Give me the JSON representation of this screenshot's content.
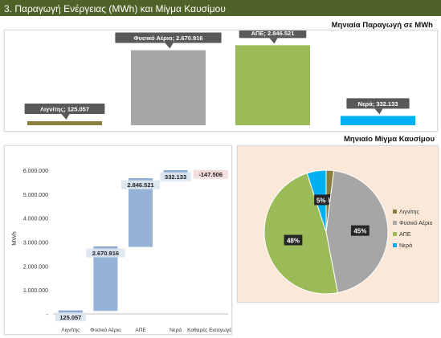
{
  "header": {
    "title": "3. Παραγωγή Ενέργειας (MWh) και Μίγμα Καυσίμου"
  },
  "colors": {
    "header_bg": "#4f6228",
    "lignite": "#8b7d3a",
    "gas": "#a6a6a6",
    "res": "#9bbb59",
    "hydro": "#00b0f0",
    "waterfall": "#95b3d7",
    "net_imports": "#e6a0a4",
    "pie_panel_bg": "#fbe8d9"
  },
  "chart_data": [
    {
      "type": "bar",
      "title": "Μηνιαία Παραγωγή σε MWh",
      "categories": [
        "Λιγνίτης",
        "Φυσικό Αέριο",
        "ΑΠΕ",
        "Νερά"
      ],
      "values": [
        125057,
        2670916,
        2846521,
        332133
      ],
      "data_labels": [
        "Λιγνίτης; 125.057",
        "Φυσικό Αέριο; 2.670.916",
        "ΑΠΕ; 2.846.521",
        "Νερά; 332.133"
      ],
      "colors": [
        "#8b7d3a",
        "#a6a6a6",
        "#9bbb59",
        "#00b0f0"
      ],
      "ylim": [
        0,
        3000000
      ]
    },
    {
      "type": "bar",
      "subtype": "waterfall",
      "categories": [
        "Λιγνίτης",
        "Φυσικό Αέριο",
        "ΑΠΕ",
        "Νερά",
        "Καθαρές Εισαγωγές"
      ],
      "values": [
        125057,
        2670916,
        2846521,
        332133,
        -147506
      ],
      "data_labels": [
        "125.057",
        "2.670.916",
        "2.846.521",
        "332.133",
        "-147.506"
      ],
      "ylabel": "MWh",
      "ylim": [
        0,
        6500000
      ],
      "yticks": [
        0,
        1000000,
        2000000,
        3000000,
        4000000,
        5000000,
        6000000
      ],
      "ytick_labels": [
        "-",
        "1.000.000",
        "2.000.000",
        "3.000.000",
        "4.000.000",
        "5.000.000",
        "6.000.000"
      ]
    },
    {
      "type": "pie",
      "title": "Μηνιαίο Μίγμα Καυσίμου",
      "labels": [
        "Λιγνίτης",
        "Φυσικό Αέριο",
        "ΑΠΕ",
        "Νερά"
      ],
      "values": [
        2,
        45,
        48,
        5
      ],
      "data_labels": [
        "2%",
        "45%",
        "48%",
        "5%"
      ],
      "colors": [
        "#8b7d3a",
        "#a6a6a6",
        "#9bbb59",
        "#00b0f0"
      ],
      "legend": "right"
    }
  ]
}
